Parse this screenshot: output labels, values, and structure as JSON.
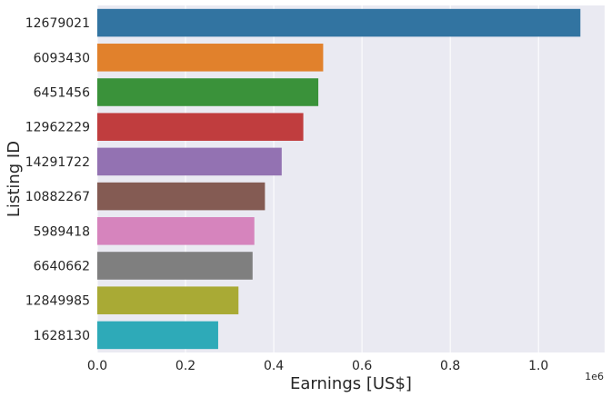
{
  "chart_data": {
    "type": "bar",
    "orientation": "horizontal",
    "title": "",
    "xlabel": "Earnings [US$]",
    "ylabel": "Listing ID",
    "x_offset_label": "1e6",
    "xlim": [
      0,
      1.15
    ],
    "x_ticks": [
      0.0,
      0.2,
      0.4,
      0.6,
      0.8,
      1.0
    ],
    "x_tick_labels": [
      "0.0",
      "0.2",
      "0.4",
      "0.6",
      "0.8",
      "1.0"
    ],
    "grid": true,
    "background_color": "#eaeaf2",
    "categories": [
      "12679021",
      "6093430",
      "6451456",
      "12962229",
      "14291722",
      "10882267",
      "5989418",
      "6640662",
      "12849985",
      "1628130"
    ],
    "values": [
      1.095,
      0.512,
      0.501,
      0.467,
      0.418,
      0.38,
      0.356,
      0.352,
      0.32,
      0.274
    ],
    "colors": [
      "#3274a1",
      "#e1812c",
      "#3a923a",
      "#c03d3e",
      "#9372b2",
      "#845b53",
      "#d684bd",
      "#7f7f7f",
      "#a9aa35",
      "#2eaab8"
    ]
  }
}
